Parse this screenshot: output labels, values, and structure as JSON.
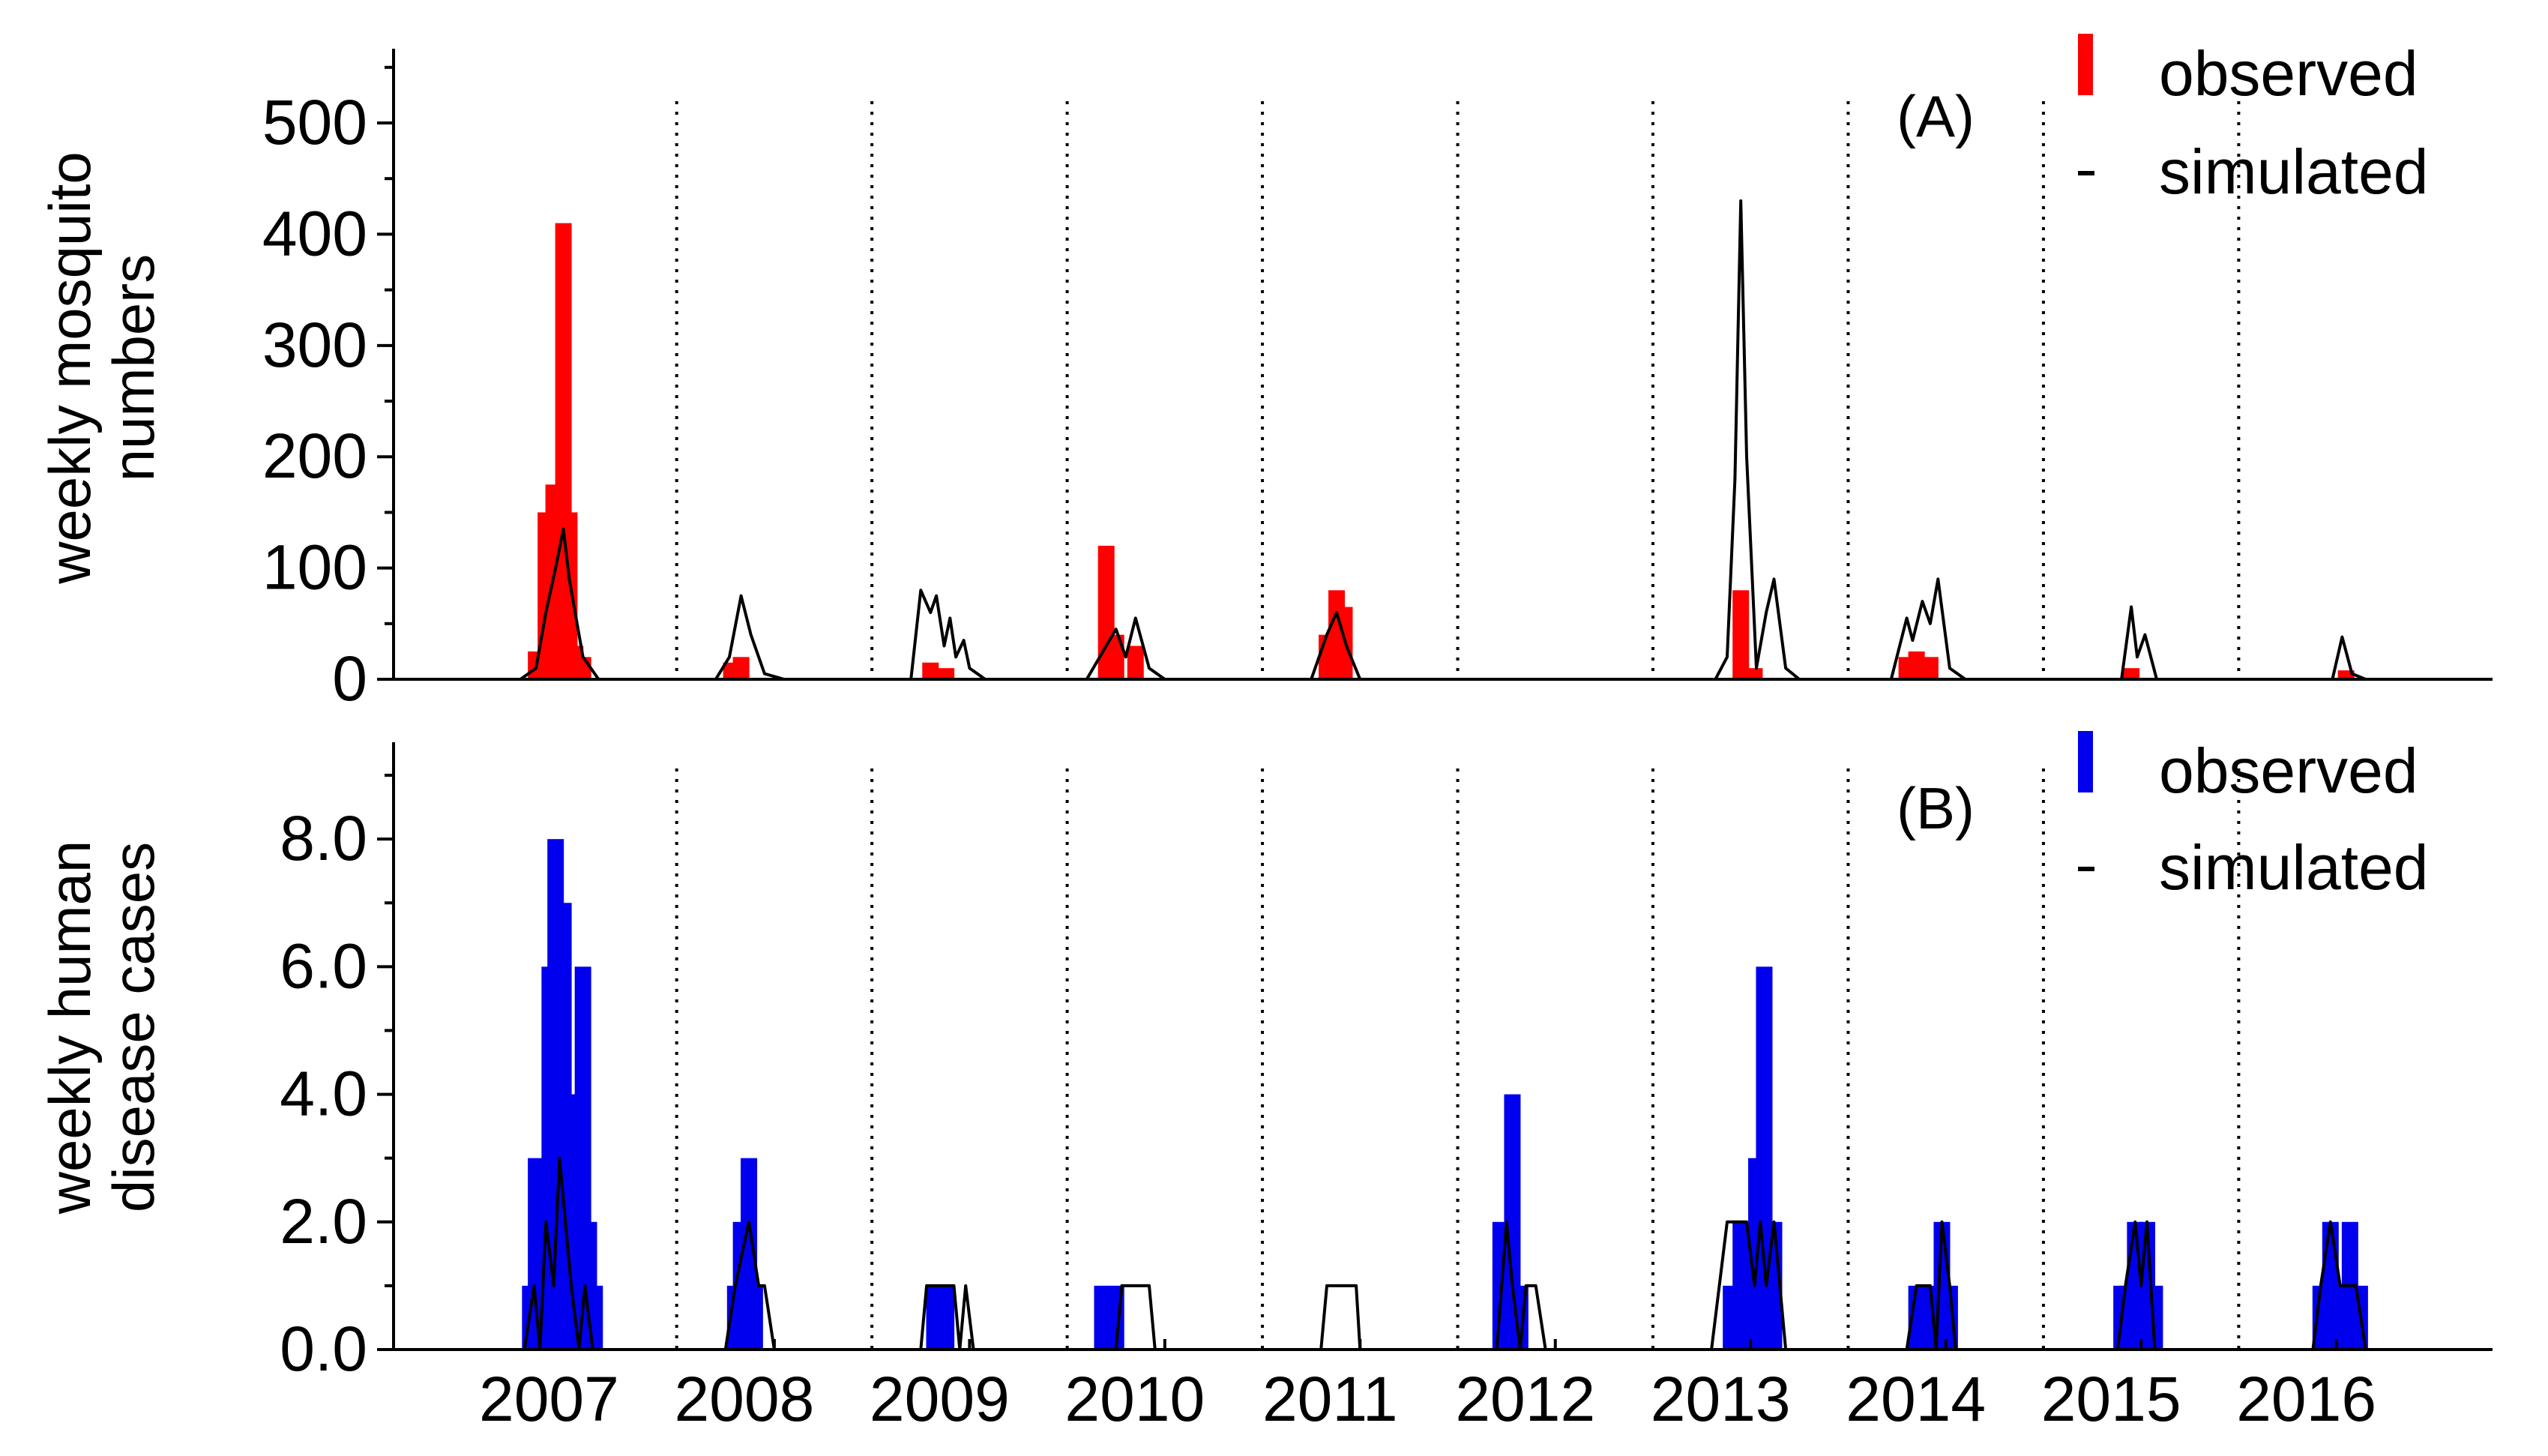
{
  "chart_data": [
    {
      "panel": "(A)",
      "type": "bar",
      "ylabel": [
        "weekly mosquito",
        "numbers"
      ],
      "ylim": [
        0,
        560
      ],
      "yticks": [
        0,
        100,
        200,
        300,
        400,
        500
      ],
      "ytick_labels": [
        "0",
        "100",
        "200",
        "300",
        "400",
        "500"
      ],
      "legend_position": "top-right",
      "series": [
        {
          "name": "observed",
          "kind": "bar",
          "color": "#ff0000",
          "points": [
            [
              2007.28,
              25
            ],
            [
              2007.33,
              150
            ],
            [
              2007.37,
              175
            ],
            [
              2007.42,
              410
            ],
            [
              2007.45,
              150
            ],
            [
              2007.48,
              30
            ],
            [
              2007.52,
              20
            ],
            [
              2008.28,
              15
            ],
            [
              2008.33,
              20
            ],
            [
              2009.3,
              15
            ],
            [
              2009.38,
              10
            ],
            [
              2010.2,
              120
            ],
            [
              2010.25,
              40
            ],
            [
              2010.35,
              30
            ],
            [
              2011.33,
              40
            ],
            [
              2011.38,
              80
            ],
            [
              2011.42,
              65
            ],
            [
              2013.45,
              80
            ],
            [
              2013.52,
              10
            ],
            [
              2014.3,
              20
            ],
            [
              2014.35,
              25
            ],
            [
              2014.42,
              20
            ],
            [
              2015.45,
              10
            ],
            [
              2016.55,
              8
            ]
          ]
        },
        {
          "name": "simulated",
          "kind": "line",
          "color": "#000000",
          "points": [
            [
              2006.55,
              0
            ],
            [
              2007.2,
              0
            ],
            [
              2007.28,
              10
            ],
            [
              2007.33,
              60
            ],
            [
              2007.38,
              100
            ],
            [
              2007.42,
              135
            ],
            [
              2007.45,
              90
            ],
            [
              2007.48,
              60
            ],
            [
              2007.52,
              20
            ],
            [
              2007.6,
              0
            ],
            [
              2008.2,
              0
            ],
            [
              2008.27,
              20
            ],
            [
              2008.33,
              75
            ],
            [
              2008.38,
              40
            ],
            [
              2008.45,
              5
            ],
            [
              2008.55,
              0
            ],
            [
              2009.2,
              0
            ],
            [
              2009.25,
              80
            ],
            [
              2009.3,
              60
            ],
            [
              2009.33,
              75
            ],
            [
              2009.37,
              30
            ],
            [
              2009.4,
              55
            ],
            [
              2009.43,
              20
            ],
            [
              2009.47,
              35
            ],
            [
              2009.5,
              10
            ],
            [
              2009.58,
              0
            ],
            [
              2010.1,
              0
            ],
            [
              2010.2,
              30
            ],
            [
              2010.25,
              45
            ],
            [
              2010.3,
              20
            ],
            [
              2010.35,
              55
            ],
            [
              2010.42,
              10
            ],
            [
              2010.5,
              0
            ],
            [
              2011.25,
              0
            ],
            [
              2011.33,
              40
            ],
            [
              2011.38,
              60
            ],
            [
              2011.43,
              30
            ],
            [
              2011.5,
              0
            ],
            [
              2013.32,
              0
            ],
            [
              2013.38,
              20
            ],
            [
              2013.42,
              180
            ],
            [
              2013.45,
              430
            ],
            [
              2013.48,
              200
            ],
            [
              2013.53,
              10
            ],
            [
              2013.58,
              60
            ],
            [
              2013.62,
              90
            ],
            [
              2013.68,
              10
            ],
            [
              2013.75,
              0
            ],
            [
              2014.22,
              0
            ],
            [
              2014.3,
              55
            ],
            [
              2014.33,
              35
            ],
            [
              2014.38,
              70
            ],
            [
              2014.42,
              50
            ],
            [
              2014.46,
              90
            ],
            [
              2014.52,
              10
            ],
            [
              2014.6,
              0
            ],
            [
              2015.4,
              0
            ],
            [
              2015.45,
              65
            ],
            [
              2015.48,
              20
            ],
            [
              2015.52,
              40
            ],
            [
              2015.58,
              0
            ],
            [
              2016.48,
              0
            ],
            [
              2016.53,
              38
            ],
            [
              2016.58,
              5
            ],
            [
              2016.65,
              0
            ],
            [
              2017.3,
              0
            ]
          ]
        }
      ]
    },
    {
      "panel": "(B)",
      "type": "bar",
      "ylabel": [
        "weekly human",
        "disease cases"
      ],
      "ylim": [
        0,
        9.4
      ],
      "yticks": [
        0,
        2,
        4,
        6,
        8
      ],
      "ytick_labels": [
        "0.0",
        "2.0",
        "4.0",
        "6.0",
        "8.0"
      ],
      "legend_position": "top-right",
      "series": [
        {
          "name": "observed",
          "kind": "bar",
          "color": "#0000ee",
          "points": [
            [
              2007.25,
              1
            ],
            [
              2007.28,
              3
            ],
            [
              2007.32,
              2
            ],
            [
              2007.35,
              6
            ],
            [
              2007.38,
              8
            ],
            [
              2007.42,
              7
            ],
            [
              2007.45,
              4
            ],
            [
              2007.48,
              4
            ],
            [
              2007.52,
              6
            ],
            [
              2007.55,
              2
            ],
            [
              2007.58,
              1
            ],
            [
              2008.3,
              1
            ],
            [
              2008.33,
              2
            ],
            [
              2008.37,
              3
            ],
            [
              2008.4,
              1
            ],
            [
              2009.32,
              1
            ],
            [
              2009.38,
              1
            ],
            [
              2010.18,
              1
            ],
            [
              2010.25,
              1
            ],
            [
              2012.22,
              2
            ],
            [
              2012.28,
              4
            ],
            [
              2012.32,
              1
            ],
            [
              2013.4,
              1
            ],
            [
              2013.45,
              2
            ],
            [
              2013.5,
              2
            ],
            [
              2013.53,
              3
            ],
            [
              2013.57,
              6
            ],
            [
              2013.62,
              2
            ],
            [
              2014.35,
              1
            ],
            [
              2014.42,
              1
            ],
            [
              2014.48,
              2
            ],
            [
              2014.52,
              1
            ],
            [
              2015.4,
              1
            ],
            [
              2015.43,
              1
            ],
            [
              2015.47,
              2
            ],
            [
              2015.5,
              1
            ],
            [
              2015.53,
              2
            ],
            [
              2015.57,
              1
            ],
            [
              2016.42,
              1
            ],
            [
              2016.47,
              2
            ],
            [
              2016.52,
              1
            ],
            [
              2016.57,
              2
            ],
            [
              2016.62,
              1
            ]
          ]
        },
        {
          "name": "simulated",
          "kind": "line",
          "color": "#000000",
          "points": [
            [
              2006.55,
              0
            ],
            [
              2007.22,
              0
            ],
            [
              2007.27,
              1
            ],
            [
              2007.3,
              0
            ],
            [
              2007.33,
              2
            ],
            [
              2007.37,
              1
            ],
            [
              2007.4,
              3
            ],
            [
              2007.43,
              2
            ],
            [
              2007.46,
              1
            ],
            [
              2007.5,
              0
            ],
            [
              2007.53,
              1
            ],
            [
              2007.57,
              0
            ],
            [
              2008.25,
              0
            ],
            [
              2008.3,
              1
            ],
            [
              2008.37,
              2
            ],
            [
              2008.42,
              1
            ],
            [
              2008.45,
              1
            ],
            [
              2008.5,
              0
            ],
            [
              2009.25,
              0
            ],
            [
              2009.28,
              1
            ],
            [
              2009.42,
              1
            ],
            [
              2009.45,
              0
            ],
            [
              2009.48,
              1
            ],
            [
              2009.52,
              0
            ],
            [
              2010.25,
              0
            ],
            [
              2010.28,
              1
            ],
            [
              2010.42,
              1
            ],
            [
              2010.45,
              0
            ],
            [
              2011.3,
              0
            ],
            [
              2011.33,
              1
            ],
            [
              2011.48,
              1
            ],
            [
              2011.5,
              0
            ],
            [
              2012.2,
              0
            ],
            [
              2012.25,
              2
            ],
            [
              2012.28,
              1
            ],
            [
              2012.32,
              0
            ],
            [
              2012.35,
              1
            ],
            [
              2012.4,
              1
            ],
            [
              2012.45,
              0
            ],
            [
              2013.3,
              0
            ],
            [
              2013.38,
              2
            ],
            [
              2013.48,
              2
            ],
            [
              2013.52,
              1
            ],
            [
              2013.55,
              2
            ],
            [
              2013.58,
              1
            ],
            [
              2013.62,
              2
            ],
            [
              2013.68,
              0
            ],
            [
              2014.3,
              0
            ],
            [
              2014.35,
              1
            ],
            [
              2014.42,
              1
            ],
            [
              2014.45,
              0
            ],
            [
              2014.48,
              2
            ],
            [
              2014.52,
              1
            ],
            [
              2014.55,
              0
            ],
            [
              2015.38,
              0
            ],
            [
              2015.42,
              1
            ],
            [
              2015.47,
              2
            ],
            [
              2015.5,
              1
            ],
            [
              2015.53,
              2
            ],
            [
              2015.57,
              0
            ],
            [
              2016.38,
              0
            ],
            [
              2016.42,
              1
            ],
            [
              2016.47,
              2
            ],
            [
              2016.52,
              1
            ],
            [
              2016.6,
              1
            ],
            [
              2016.65,
              0
            ],
            [
              2017.3,
              0
            ]
          ]
        }
      ]
    }
  ],
  "x_axis": {
    "range": [
      2006.55,
      2017.3
    ],
    "year_labels": [
      "2007",
      "2008",
      "2009",
      "2010",
      "2011",
      "2012",
      "2013",
      "2014",
      "2015",
      "2016"
    ],
    "year_label_positions": [
      2007.5,
      2008.5,
      2009.5,
      2010.5,
      2011.5,
      2012.5,
      2013.5,
      2014.5,
      2015.5,
      2016.5
    ],
    "separators": [
      2008,
      2009,
      2010,
      2011,
      2012,
      2013,
      2014,
      2015,
      2016
    ]
  },
  "legend": {
    "observed": "observed",
    "simulated": "simulated"
  },
  "colors": {
    "mosquito_observed": "#ff0000",
    "human_observed": "#0000ee",
    "simulated": "#000000",
    "axis": "#000000"
  }
}
